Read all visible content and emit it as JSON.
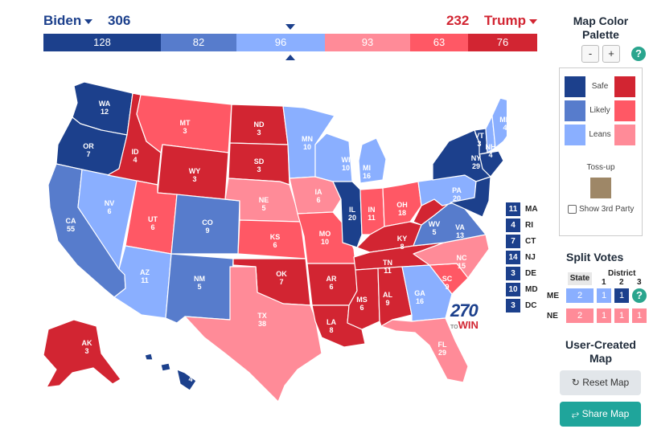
{
  "colors": {
    "safe_d": "#1c408c",
    "likely_d": "#577ccc",
    "leans_d": "#8aafff",
    "leans_r": "#ff8b98",
    "likely_r": "#ff5865",
    "safe_r": "#d22532",
    "tossup": "#9e8767"
  },
  "header": {
    "biden_name": "Biden",
    "biden_total": "306",
    "trump_name": "Trump",
    "trump_total": "232"
  },
  "bar": {
    "safe_d": "128",
    "likely_d": "82",
    "leans_d": "96",
    "leans_r": "93",
    "likely_r": "63",
    "safe_r": "76"
  },
  "states": [
    {
      "abbr": "WA",
      "ev": "12"
    },
    {
      "abbr": "OR",
      "ev": "7"
    },
    {
      "abbr": "CA",
      "ev": "55"
    },
    {
      "abbr": "NV",
      "ev": "6"
    },
    {
      "abbr": "ID",
      "ev": "4"
    },
    {
      "abbr": "MT",
      "ev": "3"
    },
    {
      "abbr": "WY",
      "ev": "3"
    },
    {
      "abbr": "UT",
      "ev": "6"
    },
    {
      "abbr": "AZ",
      "ev": "11"
    },
    {
      "abbr": "CO",
      "ev": "9"
    },
    {
      "abbr": "NM",
      "ev": "5"
    },
    {
      "abbr": "ND",
      "ev": "3"
    },
    {
      "abbr": "SD",
      "ev": "3"
    },
    {
      "abbr": "NE",
      "ev": "5"
    },
    {
      "abbr": "KS",
      "ev": "6"
    },
    {
      "abbr": "OK",
      "ev": "7"
    },
    {
      "abbr": "TX",
      "ev": "38"
    },
    {
      "abbr": "MN",
      "ev": "10"
    },
    {
      "abbr": "IA",
      "ev": "6"
    },
    {
      "abbr": "MO",
      "ev": "10"
    },
    {
      "abbr": "AR",
      "ev": "6"
    },
    {
      "abbr": "LA",
      "ev": "8"
    },
    {
      "abbr": "WI",
      "ev": "10"
    },
    {
      "abbr": "IL",
      "ev": "20"
    },
    {
      "abbr": "MI",
      "ev": "16"
    },
    {
      "abbr": "IN",
      "ev": "11"
    },
    {
      "abbr": "OH",
      "ev": "18"
    },
    {
      "abbr": "KY",
      "ev": "8"
    },
    {
      "abbr": "TN",
      "ev": "11"
    },
    {
      "abbr": "MS",
      "ev": "6"
    },
    {
      "abbr": "AL",
      "ev": "9"
    },
    {
      "abbr": "GA",
      "ev": "16"
    },
    {
      "abbr": "FL",
      "ev": "29"
    },
    {
      "abbr": "SC",
      "ev": "9"
    },
    {
      "abbr": "NC",
      "ev": "15"
    },
    {
      "abbr": "VA",
      "ev": "13"
    },
    {
      "abbr": "WV",
      "ev": "5"
    },
    {
      "abbr": "PA",
      "ev": "20"
    },
    {
      "abbr": "NY",
      "ev": "29"
    },
    {
      "abbr": "VT",
      "ev": "3"
    },
    {
      "abbr": "NH",
      "ev": "4"
    },
    {
      "abbr": "ME",
      "ev": "4"
    },
    {
      "abbr": "AK",
      "ev": "3"
    },
    {
      "abbr": "HI",
      "ev": "4"
    }
  ],
  "small_states": [
    {
      "ev": "11",
      "abbr": "MA"
    },
    {
      "ev": "4",
      "abbr": "RI"
    },
    {
      "ev": "7",
      "abbr": "CT"
    },
    {
      "ev": "14",
      "abbr": "NJ"
    },
    {
      "ev": "3",
      "abbr": "DE"
    },
    {
      "ev": "10",
      "abbr": "MD"
    },
    {
      "ev": "3",
      "abbr": "DC"
    }
  ],
  "logo": {
    "num": "270",
    "to": "TO",
    "win": "WIN"
  },
  "palette": {
    "title": "Map Color Palette",
    "zoom_minus": "-",
    "zoom_plus": "+",
    "help": "?",
    "safe": "Safe",
    "likely": "Likely",
    "leans": "Leans",
    "tossup": "Toss-up",
    "third_party": "Show 3rd Party"
  },
  "split": {
    "title": "Split Votes",
    "state_hdr": "State",
    "district_hdr": "District",
    "d1": "1",
    "d2": "2",
    "d3": "3",
    "me": {
      "label": "ME",
      "state": "2",
      "d1": "1",
      "d2": "1"
    },
    "ne": {
      "label": "NE",
      "state": "2",
      "d1": "1",
      "d2": "1",
      "d3": "1"
    }
  },
  "user_map": {
    "title": "User-Created Map",
    "reset": "Reset Map",
    "share": "Share Map"
  }
}
